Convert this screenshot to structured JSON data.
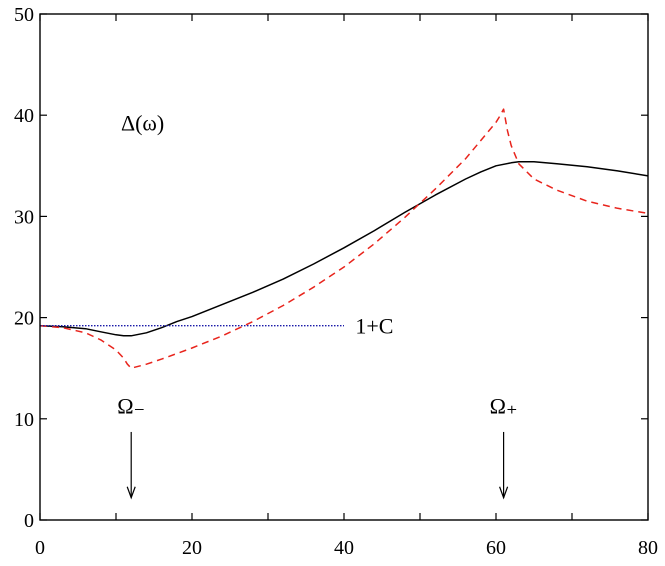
{
  "chart_data": {
    "type": "line",
    "title": "",
    "xlabel": "",
    "ylabel": "",
    "xlim": [
      0,
      80
    ],
    "ylim": [
      0,
      50
    ],
    "x_ticks": [
      0,
      20,
      40,
      60,
      80
    ],
    "y_ticks": [
      0,
      10,
      20,
      30,
      40,
      50
    ],
    "x_tick_labels": [
      "0",
      "20",
      "40",
      "60",
      "80"
    ],
    "y_tick_labels": [
      "0",
      "10",
      "20",
      "30",
      "40",
      "50"
    ],
    "grid": false,
    "legend": "none",
    "series": [
      {
        "color": "#000000",
        "dash": "solid",
        "x": [
          0,
          3,
          6,
          8,
          10,
          11,
          12,
          14,
          16,
          18,
          20,
          24,
          28,
          32,
          36,
          40,
          44,
          48,
          52,
          56,
          58,
          60,
          62,
          63,
          65,
          68,
          72,
          76,
          80
        ],
        "y": [
          19.2,
          19.1,
          18.9,
          18.6,
          18.3,
          18.2,
          18.2,
          18.5,
          19.0,
          19.6,
          20.1,
          21.3,
          22.5,
          23.8,
          25.3,
          26.9,
          28.6,
          30.4,
          32.1,
          33.7,
          34.4,
          35.0,
          35.3,
          35.4,
          35.4,
          35.2,
          34.9,
          34.5,
          34.0
        ]
      },
      {
        "color": "#e8241c",
        "dash": "dashed",
        "x": [
          0,
          3,
          6,
          8,
          10,
          11,
          11.5,
          12,
          14,
          16,
          20,
          24,
          28,
          32,
          36,
          40,
          44,
          48,
          52,
          56,
          58,
          60,
          60.5,
          61,
          61.5,
          62,
          63,
          65,
          68,
          72,
          76,
          80
        ],
        "y": [
          19.2,
          19.0,
          18.5,
          17.8,
          16.8,
          16.0,
          15.4,
          15.0,
          15.4,
          15.9,
          17.0,
          18.2,
          19.6,
          21.2,
          23.0,
          25.0,
          27.3,
          29.9,
          32.7,
          35.7,
          37.5,
          39.3,
          39.9,
          40.6,
          38.5,
          37.0,
          35.2,
          33.7,
          32.6,
          31.5,
          30.8,
          30.3
        ]
      },
      {
        "color": "#1a1aa8",
        "dash": "dotted",
        "x": [
          0,
          40
        ],
        "y": [
          19.2,
          19.2
        ]
      }
    ],
    "annotations": [
      {
        "text": "Δ(ω)",
        "x": 13.5,
        "y": 38.5
      },
      {
        "text": "1+C",
        "x": 41.5,
        "y": 19.2
      },
      {
        "text": "Ω₋",
        "x": 12,
        "y": 10.5
      },
      {
        "text": "Ω₊",
        "x": 61,
        "y": 10.5
      }
    ],
    "arrows": [
      {
        "x": 12,
        "y_from": 8.7,
        "y_to": 2.2
      },
      {
        "x": 61,
        "y_from": 8.7,
        "y_to": 2.2
      }
    ]
  }
}
